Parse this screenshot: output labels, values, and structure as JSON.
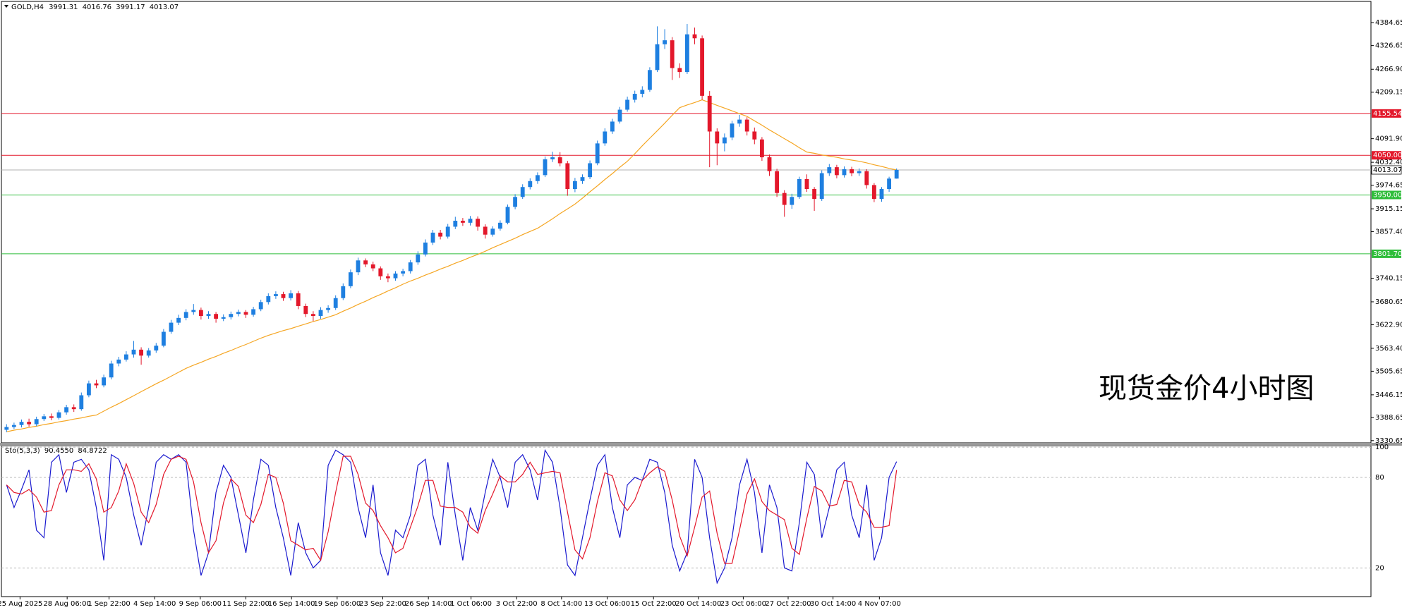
{
  "chart_data": [
    {
      "type": "candlestick",
      "title": "GOLD,H4",
      "annotation": "现货金价4小时图",
      "bull_color": "#1e7fe0",
      "bear_color": "#e3182b",
      "ylim": [
        3325,
        4438
      ],
      "xlim": [
        -0.5,
        119.5
      ],
      "yticks": [
        4384.65,
        4326.65,
        {
          "value": 4266.9,
          "label": "4266.90"
        },
        4209.15,
        {
          "value": 4091.9,
          "label": "4091.90"
        },
        {
          "value": 4032.4,
          "label": "4032.40"
        },
        3974.65,
        3915.15,
        {
          "value": 3857.4,
          "label": "3857.40"
        },
        3740.15,
        3680.65,
        {
          "value": 3622.9,
          "label": "3622.90"
        },
        {
          "value": 3563.4,
          "label": "3563.40"
        },
        3505.65,
        3446.15,
        3388.65,
        3330.65
      ],
      "xticks": [
        {
          "value": 1.8,
          "label": "25 Aug 2025"
        },
        {
          "value": 8.1,
          "label": "28 Aug 06:00"
        },
        {
          "value": 13.7,
          "label": "1 Sep 22:00"
        },
        {
          "value": 19.8,
          "label": "4 Sep 14:00"
        },
        {
          "value": 25.9,
          "label": "9 Sep 06:00"
        },
        {
          "value": 32,
          "label": "11 Sep 22:00"
        },
        {
          "value": 38.1,
          "label": "16 Sep 14:00"
        },
        {
          "value": 44.2,
          "label": "19 Sep 06:00"
        },
        {
          "value": 50.3,
          "label": "23 Sep 22:00"
        },
        {
          "value": 56.4,
          "label": "26 Sep 14:00"
        },
        {
          "value": 62.1,
          "label": "1 Oct 06:00"
        },
        {
          "value": 68.2,
          "label": "3 Oct 22:00"
        },
        {
          "value": 74.2,
          "label": "8 Oct 14:00"
        },
        {
          "value": 80.3,
          "label": "13 Oct 06:00"
        },
        {
          "value": 86.5,
          "label": "15 Oct 22:00"
        },
        {
          "value": 92.5,
          "label": "20 Oct 14:00"
        },
        {
          "value": 98.5,
          "label": "23 Oct 06:00"
        },
        {
          "value": 104.5,
          "label": "27 Oct 22:00"
        },
        {
          "value": 110.5,
          "label": "30 Oct 14:00"
        },
        {
          "value": 116.7,
          "label": "4 Nov 07:00"
        }
      ],
      "levels": [
        {
          "value": 4155.54,
          "color": "#e3182b"
        },
        {
          "value": 4050,
          "label": "4050.00",
          "color": "#e3182b"
        },
        {
          "value": 3950,
          "label": "3950.00",
          "color": "#2ebd3a"
        },
        {
          "value": 3801.7,
          "label": "3801.70",
          "color": "#2ebd3a"
        }
      ],
      "current_color": "#b0b0b0",
      "ma": {
        "color": "#f5a623",
        "values": [
          3353,
          3357,
          3360,
          3364,
          3367,
          3371,
          3374,
          3378,
          3381,
          3385,
          3388,
          3392,
          3395,
          3405,
          3415,
          3424,
          3434,
          3444,
          3454,
          3464,
          3474,
          3483,
          3493,
          3503,
          3513,
          3521,
          3528,
          3536,
          3543,
          3551,
          3558,
          3566,
          3573,
          3581,
          3589,
          3596,
          3602,
          3608,
          3613,
          3619,
          3625,
          3631,
          3636,
          3642,
          3648,
          3657,
          3665,
          3674,
          3682,
          3691,
          3699,
          3708,
          3716,
          3725,
          3733,
          3740,
          3748,
          3755,
          3763,
          3770,
          3778,
          3785,
          3793,
          3800,
          3808,
          3817,
          3825,
          3833,
          3841,
          3850,
          3858,
          3866,
          3878,
          3890,
          3903,
          3915,
          3927,
          3942,
          3958,
          3973,
          3989,
          4004,
          4020,
          4035,
          4054,
          4074,
          4093,
          4112,
          4131,
          4151,
          4170,
          4177,
          4183,
          4190,
          4183,
          4176,
          4169,
          4162,
          4155,
          4148,
          4137,
          4126,
          4114,
          4103,
          4092,
          4081,
          4069,
          4058,
          4055,
          4051,
          4048,
          4045,
          4041,
          4038,
          4035,
          4031,
          4026,
          4022,
          4017,
          4013
        ]
      },
      "ohlc": [
        [
          3358,
          3372,
          3352,
          3365
        ],
        [
          3365,
          3376,
          3360,
          3370
        ],
        [
          3370,
          3384,
          3364,
          3378
        ],
        [
          3378,
          3386,
          3366,
          3372
        ],
        [
          3372,
          3391,
          3367,
          3385
        ],
        [
          3385,
          3398,
          3380,
          3392
        ],
        [
          3392,
          3399,
          3382,
          3388
        ],
        [
          3388,
          3408,
          3384,
          3402
        ],
        [
          3402,
          3421,
          3396,
          3415
        ],
        [
          3415,
          3422,
          3403,
          3410
        ],
        [
          3410,
          3452,
          3406,
          3445
        ],
        [
          3445,
          3482,
          3440,
          3475
        ],
        [
          3475,
          3484,
          3463,
          3470
        ],
        [
          3470,
          3497,
          3465,
          3490
        ],
        [
          3490,
          3532,
          3485,
          3525
        ],
        [
          3525,
          3542,
          3518,
          3535
        ],
        [
          3535,
          3556,
          3530,
          3548
        ],
        [
          3548,
          3582,
          3540,
          3560
        ],
        [
          3560,
          3566,
          3522,
          3545
        ],
        [
          3545,
          3564,
          3540,
          3558
        ],
        [
          3558,
          3577,
          3552,
          3570
        ],
        [
          3570,
          3612,
          3566,
          3605
        ],
        [
          3605,
          3635,
          3600,
          3628
        ],
        [
          3628,
          3648,
          3622,
          3640
        ],
        [
          3640,
          3662,
          3634,
          3655
        ],
        [
          3655,
          3675,
          3648,
          3660
        ],
        [
          3660,
          3666,
          3636,
          3645
        ],
        [
          3645,
          3657,
          3638,
          3650
        ],
        [
          3650,
          3655,
          3628,
          3638
        ],
        [
          3638,
          3649,
          3632,
          3642
        ],
        [
          3642,
          3656,
          3636,
          3650
        ],
        [
          3650,
          3661,
          3644,
          3655
        ],
        [
          3655,
          3660,
          3640,
          3648
        ],
        [
          3648,
          3668,
          3643,
          3662
        ],
        [
          3662,
          3686,
          3657,
          3680
        ],
        [
          3680,
          3702,
          3674,
          3695
        ],
        [
          3695,
          3707,
          3688,
          3700
        ],
        [
          3700,
          3706,
          3683,
          3690
        ],
        [
          3690,
          3710,
          3684,
          3702
        ],
        [
          3702,
          3708,
          3662,
          3670
        ],
        [
          3670,
          3676,
          3642,
          3650
        ],
        [
          3650,
          3657,
          3632,
          3645
        ],
        [
          3645,
          3667,
          3638,
          3660
        ],
        [
          3660,
          3672,
          3653,
          3665
        ],
        [
          3665,
          3697,
          3660,
          3690
        ],
        [
          3690,
          3727,
          3685,
          3720
        ],
        [
          3720,
          3762,
          3715,
          3755
        ],
        [
          3755,
          3792,
          3748,
          3785
        ],
        [
          3785,
          3790,
          3768,
          3775
        ],
        [
          3775,
          3782,
          3758,
          3765
        ],
        [
          3765,
          3770,
          3736,
          3745
        ],
        [
          3745,
          3752,
          3730,
          3740
        ],
        [
          3740,
          3758,
          3734,
          3752
        ],
        [
          3752,
          3764,
          3745,
          3758
        ],
        [
          3758,
          3786,
          3752,
          3780
        ],
        [
          3780,
          3808,
          3774,
          3800
        ],
        [
          3800,
          3838,
          3795,
          3830
        ],
        [
          3830,
          3862,
          3824,
          3855
        ],
        [
          3855,
          3862,
          3838,
          3845
        ],
        [
          3845,
          3877,
          3840,
          3870
        ],
        [
          3870,
          3895,
          3864,
          3885
        ],
        [
          3885,
          3892,
          3872,
          3880
        ],
        [
          3880,
          3897,
          3873,
          3890
        ],
        [
          3890,
          3896,
          3860,
          3870
        ],
        [
          3870,
          3876,
          3840,
          3850
        ],
        [
          3850,
          3871,
          3845,
          3865
        ],
        [
          3865,
          3886,
          3860,
          3880
        ],
        [
          3880,
          3926,
          3876,
          3920
        ],
        [
          3920,
          3952,
          3914,
          3945
        ],
        [
          3945,
          3977,
          3940,
          3970
        ],
        [
          3970,
          3992,
          3964,
          3985
        ],
        [
          3985,
          4007,
          3978,
          4000
        ],
        [
          4000,
          4047,
          3995,
          4040
        ],
        [
          4040,
          4059,
          4033,
          4045
        ],
        [
          4045,
          4058,
          4022,
          4030
        ],
        [
          4030,
          4036,
          3948,
          3965
        ],
        [
          3965,
          3993,
          3957,
          3985
        ],
        [
          3985,
          4002,
          3978,
          3995
        ],
        [
          3995,
          4037,
          3990,
          4030
        ],
        [
          4030,
          4087,
          4025,
          4080
        ],
        [
          4080,
          4118,
          4074,
          4110
        ],
        [
          4110,
          4142,
          4104,
          4135
        ],
        [
          4135,
          4172,
          4130,
          4165
        ],
        [
          4165,
          4198,
          4160,
          4190
        ],
        [
          4190,
          4213,
          4183,
          4205
        ],
        [
          4205,
          4224,
          4196,
          4215
        ],
        [
          4215,
          4272,
          4210,
          4265
        ],
        [
          4265,
          4375,
          4260,
          4330
        ],
        [
          4330,
          4368,
          4318,
          4340
        ],
        [
          4340,
          4348,
          4240,
          4270
        ],
        [
          4270,
          4282,
          4245,
          4260
        ],
        [
          4260,
          4381,
          4255,
          4355
        ],
        [
          4355,
          4372,
          4330,
          4345
        ],
        [
          4345,
          4352,
          4190,
          4200
        ],
        [
          4200,
          4212,
          4020,
          4110
        ],
        [
          4110,
          4118,
          4025,
          4080
        ],
        [
          4080,
          4105,
          4060,
          4095
        ],
        [
          4095,
          4137,
          4088,
          4130
        ],
        [
          4130,
          4152,
          4122,
          4140
        ],
        [
          4140,
          4146,
          4100,
          4110
        ],
        [
          4110,
          4120,
          4078,
          4090
        ],
        [
          4090,
          4096,
          4036,
          4045
        ],
        [
          4045,
          4052,
          3998,
          4010
        ],
        [
          4010,
          4016,
          3945,
          3955
        ],
        [
          3955,
          3962,
          3895,
          3925
        ],
        [
          3925,
          3953,
          3915,
          3945
        ],
        [
          3945,
          3996,
          3940,
          3990
        ],
        [
          3990,
          4002,
          3958,
          3965
        ],
        [
          3965,
          3970,
          3910,
          3940
        ],
        [
          3940,
          4012,
          3935,
          4005
        ],
        [
          4005,
          4028,
          3998,
          4020
        ],
        [
          4020,
          4026,
          3992,
          4000
        ],
        [
          4000,
          4022,
          3994,
          4015
        ],
        [
          4015,
          4021,
          3997,
          4005
        ],
        [
          4005,
          4017,
          3998,
          4010
        ],
        [
          4010,
          4015,
          3966,
          3975
        ],
        [
          3975,
          3980,
          3932,
          3940
        ],
        [
          3940,
          3970,
          3933,
          3965
        ],
        [
          3965,
          3996,
          3958,
          3991.31
        ],
        [
          3991.31,
          4016.76,
          3991.17,
          4013.07
        ]
      ]
    },
    {
      "type": "line",
      "title": "Sto(5,3,3)",
      "ylim": [
        1,
        101
      ],
      "yticks": [
        100,
        80,
        20
      ],
      "grid": true,
      "series": [
        {
          "color": "#1a1acf",
          "readout_label": "90.4550",
          "values": [
            75,
            60,
            72,
            85,
            45,
            40,
            90,
            95,
            70,
            90,
            92,
            85,
            60,
            25,
            95,
            92,
            80,
            55,
            35,
            60,
            90,
            95,
            92,
            95,
            90,
            45,
            15,
            30,
            70,
            88,
            80,
            55,
            30,
            65,
            92,
            88,
            60,
            40,
            15,
            50,
            30,
            20,
            25,
            88,
            98,
            95,
            90,
            60,
            40,
            75,
            30,
            15,
            45,
            40,
            55,
            88,
            92,
            55,
            35,
            90,
            55,
            25,
            60,
            45,
            70,
            92,
            80,
            60,
            90,
            95,
            85,
            65,
            98,
            90,
            60,
            22,
            15,
            40,
            65,
            88,
            95,
            60,
            40,
            75,
            80,
            78,
            92,
            90,
            70,
            35,
            18,
            30,
            92,
            80,
            40,
            10,
            20,
            40,
            75,
            92,
            70,
            30,
            75,
            60,
            20,
            18,
            50,
            90,
            82,
            40,
            60,
            85,
            90,
            55,
            40,
            75,
            25,
            40,
            80,
            90.455
          ]
        },
        {
          "color": "#e3182b",
          "readout_label": "84.8722",
          "values": [
            75,
            70,
            69,
            72,
            67,
            57,
            58,
            75,
            85,
            85,
            84,
            89,
            79,
            57,
            60,
            71,
            89,
            76,
            57,
            50,
            62,
            82,
            92,
            94,
            92,
            77,
            50,
            30,
            38,
            63,
            79,
            74,
            55,
            50,
            62,
            82,
            80,
            63,
            38,
            35,
            32,
            33,
            25,
            44,
            70,
            94,
            94,
            82,
            63,
            58,
            48,
            40,
            30,
            33,
            47,
            61,
            78,
            78,
            61,
            60,
            60,
            57,
            47,
            43,
            58,
            69,
            81,
            77,
            77,
            82,
            90,
            82,
            83,
            84,
            83,
            57,
            32,
            26,
            40,
            64,
            83,
            81,
            65,
            58,
            65,
            78,
            83,
            87,
            84,
            65,
            41,
            28,
            47,
            67,
            71,
            43,
            23,
            23,
            45,
            69,
            79,
            64,
            58,
            55,
            52,
            33,
            29,
            53,
            74,
            71,
            61,
            62,
            78,
            77,
            62,
            57,
            47,
            47,
            48,
            84.8722
          ]
        }
      ]
    }
  ]
}
